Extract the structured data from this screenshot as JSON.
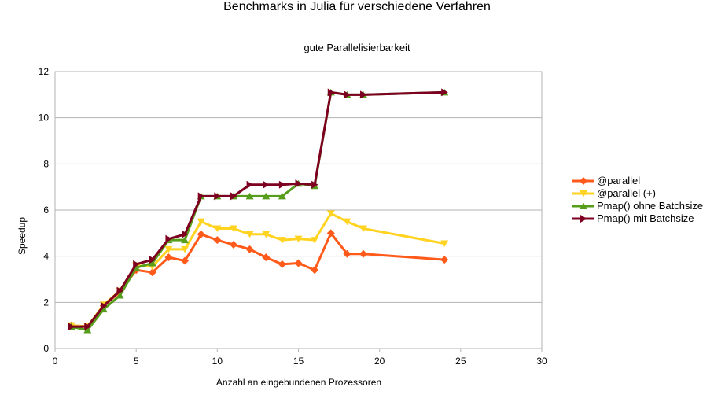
{
  "chart_data": {
    "type": "line",
    "title": "Benchmarks in Julia für verschiedene Verfahren",
    "subtitle": "gute Parallelisierbarkeit",
    "xlabel": "Anzahl an eingebundenen Prozessoren",
    "ylabel": "Speedup",
    "xlim": [
      0,
      30
    ],
    "ylim": [
      0,
      12
    ],
    "xticks": [
      0,
      5,
      10,
      15,
      20,
      25,
      30
    ],
    "yticks": [
      0,
      2,
      4,
      6,
      8,
      10,
      12
    ],
    "grid": "horizontal",
    "legend_position": "right",
    "series": [
      {
        "name": "@parallel",
        "color": "#ff5a1a",
        "marker": "diamond",
        "x": [
          1,
          2,
          3,
          4,
          5,
          6,
          7,
          8,
          9,
          10,
          11,
          12,
          13,
          14,
          15,
          16,
          17,
          18,
          19,
          24
        ],
        "y": [
          1.0,
          0.95,
          1.85,
          2.45,
          3.4,
          3.3,
          3.95,
          3.8,
          4.95,
          4.7,
          4.5,
          4.3,
          3.95,
          3.65,
          3.7,
          3.4,
          5.0,
          4.1,
          4.1,
          3.85
        ]
      },
      {
        "name": "@parallel (+)",
        "color": "#ffd320",
        "marker": "triangle-down",
        "x": [
          1,
          2,
          3,
          4,
          5,
          6,
          7,
          8,
          9,
          10,
          11,
          12,
          13,
          14,
          15,
          16,
          17,
          18,
          19,
          24
        ],
        "y": [
          1.0,
          0.95,
          1.9,
          2.5,
          3.6,
          3.55,
          4.3,
          4.3,
          5.5,
          5.2,
          5.2,
          4.95,
          4.95,
          4.7,
          4.75,
          4.7,
          5.85,
          5.5,
          5.2,
          4.55
        ]
      },
      {
        "name": "Pmap() ohne Batchsize",
        "color": "#579d1c",
        "marker": "triangle-up",
        "x": [
          1,
          2,
          3,
          4,
          5,
          6,
          7,
          8,
          9,
          10,
          11,
          12,
          13,
          14,
          15,
          16,
          17,
          18,
          19,
          24
        ],
        "y": [
          0.95,
          0.8,
          1.7,
          2.3,
          3.5,
          3.7,
          4.7,
          4.7,
          6.6,
          6.6,
          6.6,
          6.6,
          6.6,
          6.6,
          7.15,
          7.05,
          11.1,
          11.0,
          11.0,
          11.1
        ]
      },
      {
        "name": "Pmap() mit Batchsize",
        "color": "#7e0021",
        "marker": "triangle-right",
        "x": [
          1,
          2,
          3,
          4,
          5,
          6,
          7,
          8,
          9,
          10,
          11,
          12,
          13,
          14,
          15,
          16,
          17,
          18,
          19,
          24
        ],
        "y": [
          0.95,
          0.95,
          1.85,
          2.5,
          3.65,
          3.85,
          4.75,
          4.95,
          6.6,
          6.6,
          6.6,
          7.1,
          7.1,
          7.1,
          7.15,
          7.1,
          11.1,
          11.0,
          11.0,
          11.1
        ]
      }
    ]
  }
}
